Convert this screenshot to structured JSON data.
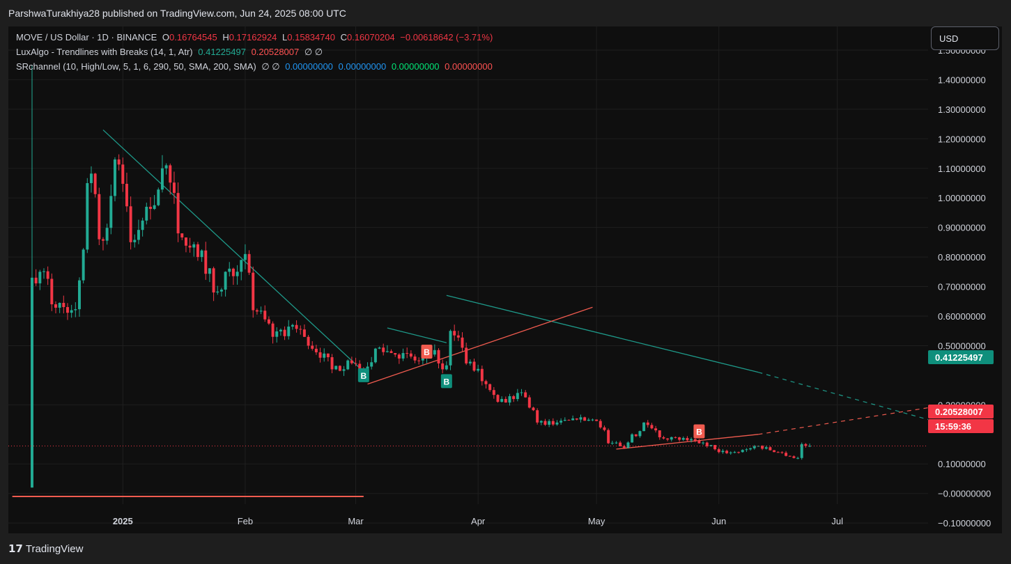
{
  "header": {
    "publisher_line": "ParshwaTurakhiya28 published on TradingView.com, Jun 24, 2025 08:00 UTC"
  },
  "legend": {
    "symbol": "MOVE / US Dollar · 1D · BINANCE",
    "o_label": "O",
    "o_value": "0.16764545",
    "h_label": "H",
    "h_value": "0.17162924",
    "l_label": "L",
    "l_value": "0.15834740",
    "c_label": "C",
    "c_value": "0.16070204",
    "change": "−0.00618642 (−3.71%)",
    "indicator1_name": "LuxAlgo - Trendlines with Breaks (14, 1, Atr)",
    "indicator1_v1": "0.41225497",
    "indicator1_v2": "0.20528007",
    "indicator1_nulls": "∅ ∅",
    "indicator2_name": "SRchannel (10, High/Low, 5, 1, 6, 290, 50, SMA, 200, SMA)",
    "indicator2_nulls": "∅ ∅",
    "indicator2_v1": "0.00000000",
    "indicator2_v2": "0.00000000",
    "indicator2_v3": "0.00000000",
    "indicator2_v4": "0.00000000"
  },
  "currency": "USD",
  "price_tags": {
    "trend_upper": "0.41225497",
    "trend_lower": "0.20528007",
    "countdown": "15:59:36"
  },
  "colors": {
    "up": "#22ab94",
    "down": "#f23645",
    "upper_trend": "#1e9a8a",
    "lower_trend": "#f05b4f",
    "background": "#0f0f0f",
    "grid": "#1f1f1f"
  },
  "footer": {
    "brand": "TradingView"
  },
  "chart_data": {
    "type": "candlestick",
    "y_ticks": [
      1.5,
      1.4,
      1.3,
      1.2,
      1.1,
      1.0,
      0.9,
      0.8,
      0.7,
      0.6,
      0.5,
      0.3,
      0.1,
      -0.0,
      -0.1
    ],
    "y_tick_labels": [
      "1.50000000",
      "1.40000000",
      "1.30000000",
      "1.20000000",
      "1.10000000",
      "1.00000000",
      "0.90000000",
      "0.80000000",
      "0.70000000",
      "0.60000000",
      "0.50000000",
      "0.30000000",
      "0.10000000",
      "−0.00000000",
      "−0.10000000"
    ],
    "ylim": [
      -0.135,
      1.58
    ],
    "x_labels": [
      {
        "label": "2025",
        "date": "2025-01-01"
      },
      {
        "label": "Feb",
        "date": "2025-02-01"
      },
      {
        "label": "Mar",
        "date": "2025-03-01"
      },
      {
        "label": "Apr",
        "date": "2025-04-01"
      },
      {
        "label": "May",
        "date": "2025-05-01"
      },
      {
        "label": "Jun",
        "date": "2025-06-01"
      },
      {
        "label": "Jul",
        "date": "2025-07-01"
      }
    ],
    "xlim": [
      "2024-12-03",
      "2025-07-24"
    ],
    "candle_anchors": [
      {
        "date": "2024-12-09",
        "close": 0.73
      },
      {
        "date": "2024-12-12",
        "close": 0.75
      },
      {
        "date": "2024-12-15",
        "close": 0.64
      },
      {
        "date": "2024-12-20",
        "close": 0.62
      },
      {
        "date": "2024-12-24",
        "close": 1.05
      },
      {
        "date": "2024-12-27",
        "close": 0.86
      },
      {
        "date": "2024-12-31",
        "close": 1.13
      },
      {
        "date": "2025-01-04",
        "close": 0.85
      },
      {
        "date": "2025-01-08",
        "close": 0.97
      },
      {
        "date": "2025-01-12",
        "close": 1.1
      },
      {
        "date": "2025-01-16",
        "close": 0.88
      },
      {
        "date": "2025-01-21",
        "close": 0.8
      },
      {
        "date": "2025-01-25",
        "close": 0.68
      },
      {
        "date": "2025-01-28",
        "close": 0.75
      },
      {
        "date": "2025-02-01",
        "close": 0.79
      },
      {
        "date": "2025-02-04",
        "close": 0.62
      },
      {
        "date": "2025-02-09",
        "close": 0.53
      },
      {
        "date": "2025-02-14",
        "close": 0.57
      },
      {
        "date": "2025-02-18",
        "close": 0.5
      },
      {
        "date": "2025-02-24",
        "close": 0.42
      },
      {
        "date": "2025-02-28",
        "close": 0.45
      },
      {
        "date": "2025-03-03",
        "close": 0.42
      },
      {
        "date": "2025-03-07",
        "close": 0.49
      },
      {
        "date": "2025-03-12",
        "close": 0.47
      },
      {
        "date": "2025-03-17",
        "close": 0.45
      },
      {
        "date": "2025-03-21",
        "close": 0.47
      },
      {
        "date": "2025-03-24",
        "close": 0.42
      },
      {
        "date": "2025-03-26",
        "close": 0.55
      },
      {
        "date": "2025-03-30",
        "close": 0.44
      },
      {
        "date": "2025-04-03",
        "close": 0.38
      },
      {
        "date": "2025-04-07",
        "close": 0.31
      },
      {
        "date": "2025-04-12",
        "close": 0.34
      },
      {
        "date": "2025-04-17",
        "close": 0.24
      },
      {
        "date": "2025-04-22",
        "close": 0.24
      },
      {
        "date": "2025-04-27",
        "close": 0.25
      },
      {
        "date": "2025-05-01",
        "close": 0.25
      },
      {
        "date": "2025-05-05",
        "close": 0.17
      },
      {
        "date": "2025-05-08",
        "close": 0.16
      },
      {
        "date": "2025-05-11",
        "close": 0.2
      },
      {
        "date": "2025-05-14",
        "close": 0.24
      },
      {
        "date": "2025-05-18",
        "close": 0.19
      },
      {
        "date": "2025-05-25",
        "close": 0.18
      },
      {
        "date": "2025-05-30",
        "close": 0.16
      },
      {
        "date": "2025-06-02",
        "close": 0.14
      },
      {
        "date": "2025-06-06",
        "close": 0.14
      },
      {
        "date": "2025-06-11",
        "close": 0.16
      },
      {
        "date": "2025-06-16",
        "close": 0.14
      },
      {
        "date": "2025-06-21",
        "close": 0.12
      },
      {
        "date": "2025-06-22",
        "close": 0.12
      },
      {
        "date": "2025-06-23",
        "close": 0.167
      },
      {
        "date": "2025-06-24",
        "close": 0.161
      }
    ],
    "spike_candle": {
      "date": "2024-12-09",
      "open": 0.02,
      "high": 1.45,
      "low": 0.02,
      "close": 0.73
    },
    "last_close": 0.1607,
    "trendlines": [
      {
        "color": "teal",
        "points": [
          {
            "date": "2024-12-27",
            "value": 1.23
          },
          {
            "date": "2025-03-04",
            "value": 0.4
          }
        ]
      },
      {
        "color": "teal",
        "points": [
          {
            "date": "2025-03-09",
            "value": 0.56
          },
          {
            "date": "2025-03-24",
            "value": 0.51
          }
        ]
      },
      {
        "color": "teal",
        "points": [
          {
            "date": "2025-03-24",
            "value": 0.67
          },
          {
            "date": "2025-06-11",
            "value": 0.41
          }
        ],
        "extension_dashed_to": {
          "date": "2025-07-24",
          "value": 0.25
        }
      },
      {
        "color": "red",
        "points": [
          {
            "date": "2025-03-04",
            "value": 0.37
          },
          {
            "date": "2025-04-30",
            "value": 0.63
          }
        ]
      },
      {
        "color": "red",
        "points": [
          {
            "date": "2025-05-06",
            "value": 0.15
          },
          {
            "date": "2025-06-11",
            "value": 0.2
          }
        ],
        "extension_dashed_to": {
          "date": "2025-07-24",
          "value": 0.29
        }
      },
      {
        "color": "red",
        "points": [
          {
            "date": "2024-12-04",
            "value": -0.01
          },
          {
            "date": "2025-03-03",
            "value": -0.01
          }
        ]
      }
    ],
    "markers": [
      {
        "text": "B",
        "kind": "up",
        "date": "2025-03-03",
        "value": 0.4
      },
      {
        "text": "B",
        "kind": "down",
        "date": "2025-03-19",
        "value": 0.48
      },
      {
        "text": "B",
        "kind": "up",
        "date": "2025-03-24",
        "value": 0.38
      },
      {
        "text": "B",
        "kind": "down",
        "date": "2025-05-27",
        "value": 0.21
      }
    ]
  }
}
